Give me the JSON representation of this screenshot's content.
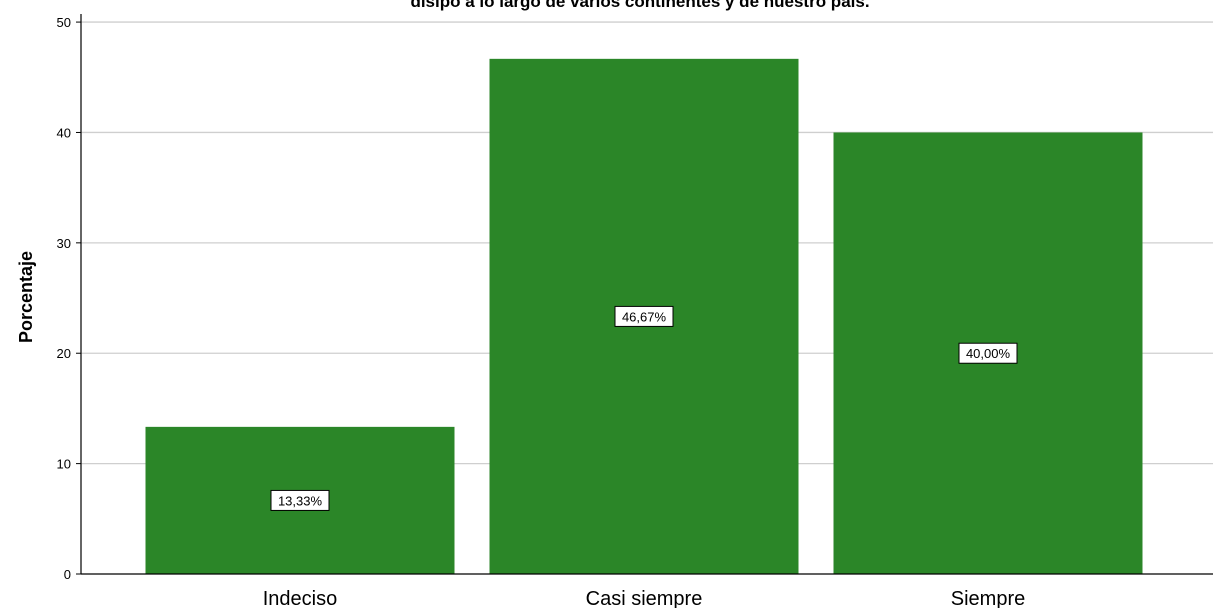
{
  "chart_data": {
    "type": "bar",
    "title": "disipo a lo largo de varios continentes y de nuestro país.",
    "xlabel": "",
    "ylabel": "Porcentaje",
    "categories": [
      "Indeciso",
      "Casi siempre",
      "Siempre"
    ],
    "values": [
      13.33,
      46.67,
      40.0
    ],
    "data_labels": [
      "13,33%",
      "46,67%",
      "40,00%"
    ],
    "ylim": [
      0,
      52
    ],
    "yticks": [
      0,
      10,
      20,
      30,
      40,
      50
    ],
    "grid": true,
    "bar_color": "#2b8628"
  }
}
